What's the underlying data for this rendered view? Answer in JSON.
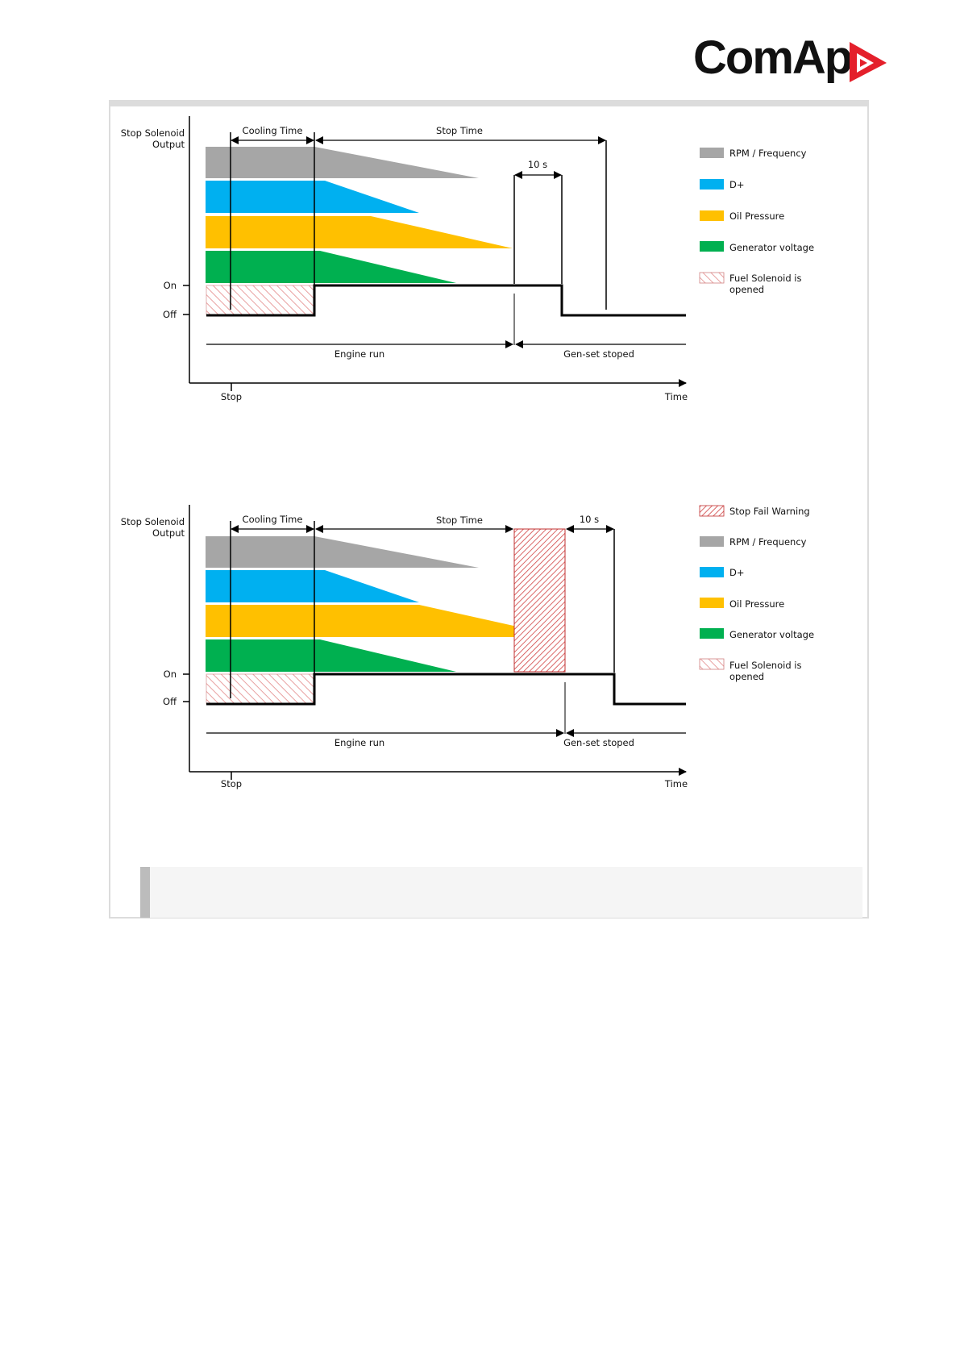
{
  "brand": {
    "name": "ComAp",
    "mark_color": "#e4202b",
    "text_color": "#111111"
  },
  "colors": {
    "rpm": "#a6a6a6",
    "dplus": "#00b0f0",
    "oil": "#ffc000",
    "genvolt": "#00b050",
    "fuel_hatch": "#e8a0a0",
    "stopfail_hatch": "#d04040"
  },
  "diagrams": [
    {
      "y_label_line1": "Stop Solenoid",
      "y_label_line2": "Output",
      "on_label": "On",
      "off_label": "Off",
      "cooling_label": "Cooling Time",
      "stop_time_label": "Stop Time",
      "ten_s_label": "10 s",
      "engine_run_label": "Engine run",
      "genset_stopped_label": "Gen-set stoped",
      "x_stop_label": "Stop",
      "x_time_label": "Time",
      "legend": [
        {
          "label": "RPM / Frequency",
          "color_key": "rpm"
        },
        {
          "label": "D+",
          "color_key": "dplus"
        },
        {
          "label": "Oil Pressure",
          "color_key": "oil"
        },
        {
          "label": "Generator voltage",
          "color_key": "genvolt"
        },
        {
          "label": "Fuel Solenoid is",
          "label2": "opened",
          "color_key": "fuel_hatch"
        }
      ]
    },
    {
      "y_label_line1": "Stop Solenoid",
      "y_label_line2": "Output",
      "on_label": "On",
      "off_label": "Off",
      "cooling_label": "Cooling Time",
      "stop_time_label": "Stop Time",
      "ten_s_label": "10 s",
      "engine_run_label": "Engine run",
      "genset_stopped_label": "Gen-set stoped",
      "x_stop_label": "Stop",
      "x_time_label": "Time",
      "legend": [
        {
          "label": "Stop Fail Warning",
          "color_key": "stopfail_hatch"
        },
        {
          "label": "RPM / Frequency",
          "color_key": "rpm"
        },
        {
          "label": "D+",
          "color_key": "dplus"
        },
        {
          "label": "Oil Pressure",
          "color_key": "oil"
        },
        {
          "label": "Generator voltage",
          "color_key": "genvolt"
        },
        {
          "label": "Fuel Solenoid is",
          "label2": "opened",
          "color_key": "fuel_hatch"
        }
      ]
    }
  ]
}
